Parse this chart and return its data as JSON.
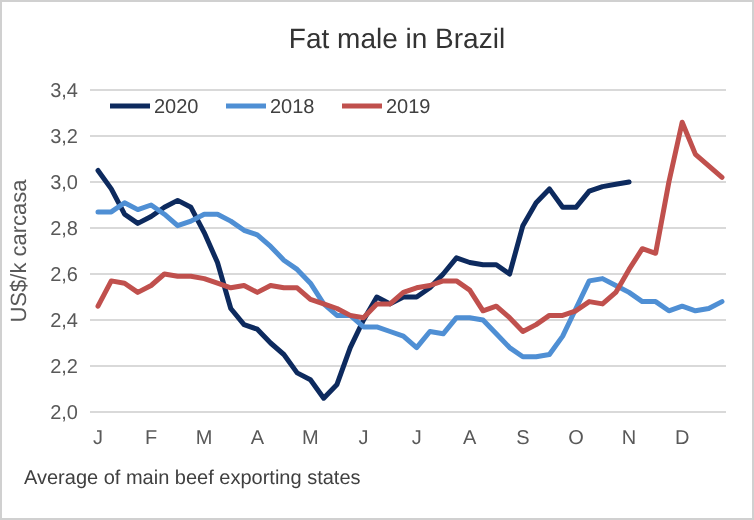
{
  "chart_data": {
    "type": "line",
    "title": "Fat male in Brazil",
    "ylabel": "US$/k carcasa",
    "annotations": [
      "Average of main beef exporting states"
    ],
    "categories": [
      "J",
      null,
      null,
      null,
      "F",
      null,
      null,
      null,
      "M",
      null,
      null,
      null,
      "A",
      null,
      null,
      null,
      "M",
      null,
      null,
      null,
      "J",
      null,
      null,
      null,
      "J",
      null,
      null,
      null,
      "A",
      null,
      null,
      null,
      "S",
      null,
      null,
      null,
      "O",
      null,
      null,
      null,
      "N",
      null,
      null,
      null,
      "D",
      null,
      null,
      null
    ],
    "ylim": [
      2.0,
      3.4
    ],
    "yticks": [
      {
        "value": 2.0,
        "label": "2,0"
      },
      {
        "value": 2.2,
        "label": "2,2"
      },
      {
        "value": 2.4,
        "label": "2,4"
      },
      {
        "value": 2.6,
        "label": "2,6"
      },
      {
        "value": 2.8,
        "label": "2,8"
      },
      {
        "value": 3.0,
        "label": "3,0"
      },
      {
        "value": 3.2,
        "label": "3,2"
      },
      {
        "value": 3.4,
        "label": "3,4"
      }
    ],
    "grid": "y",
    "legend": "top left",
    "marker": "none",
    "line_style": "solid",
    "series": [
      {
        "name": "2020",
        "color": "#0d2a5e",
        "values": [
          3.05,
          2.97,
          2.86,
          2.82,
          2.85,
          2.89,
          2.92,
          2.89,
          2.78,
          2.65,
          2.45,
          2.38,
          2.36,
          2.3,
          2.25,
          2.17,
          2.14,
          2.06,
          2.12,
          2.28,
          2.4,
          2.5,
          2.47,
          2.5,
          2.5,
          2.54,
          2.6,
          2.67,
          2.65,
          2.64,
          2.64,
          2.6,
          2.81,
          2.91,
          2.97,
          2.89,
          2.89,
          2.96,
          2.98,
          2.99,
          3.0,
          null,
          null,
          null,
          null,
          null,
          null,
          null
        ]
      },
      {
        "name": "2018",
        "color": "#4f8fd4",
        "values": [
          2.87,
          2.87,
          2.91,
          2.88,
          2.9,
          2.86,
          2.81,
          2.83,
          2.86,
          2.86,
          2.83,
          2.79,
          2.77,
          2.72,
          2.66,
          2.62,
          2.56,
          2.47,
          2.42,
          2.42,
          2.37,
          2.37,
          2.35,
          2.33,
          2.28,
          2.35,
          2.34,
          2.41,
          2.41,
          2.4,
          2.34,
          2.28,
          2.24,
          2.24,
          2.25,
          2.33,
          2.45,
          2.57,
          2.58,
          2.55,
          2.52,
          2.48,
          2.48,
          2.44,
          2.46,
          2.44,
          2.45,
          2.48
        ]
      },
      {
        "name": "2019",
        "color": "#c0504d",
        "values": [
          2.46,
          2.57,
          2.56,
          2.52,
          2.55,
          2.6,
          2.59,
          2.59,
          2.58,
          2.56,
          2.54,
          2.55,
          2.52,
          2.55,
          2.54,
          2.54,
          2.49,
          2.47,
          2.45,
          2.42,
          2.41,
          2.47,
          2.47,
          2.52,
          2.54,
          2.55,
          2.57,
          2.57,
          2.53,
          2.44,
          2.46,
          2.41,
          2.35,
          2.38,
          2.42,
          2.42,
          2.44,
          2.48,
          2.47,
          2.52,
          2.62,
          2.71,
          2.69,
          3.0,
          3.26,
          3.12,
          3.07,
          3.02
        ]
      }
    ]
  }
}
